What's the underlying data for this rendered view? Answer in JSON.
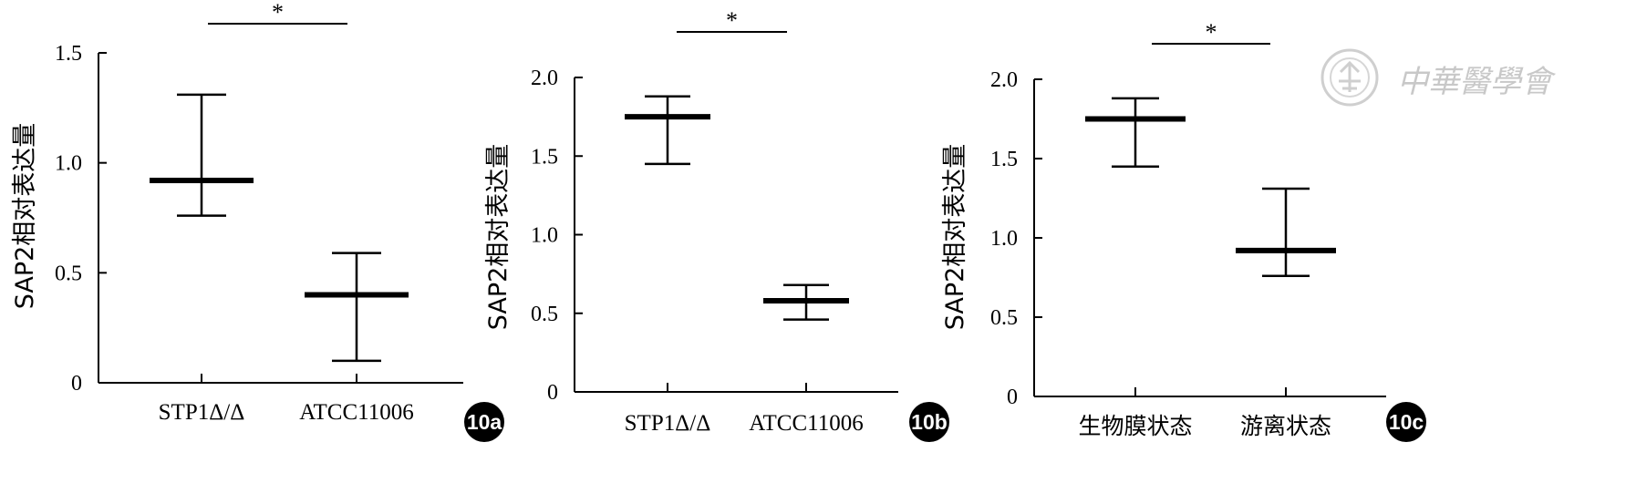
{
  "colors": {
    "ink": "#000000",
    "background": "#ffffff",
    "watermark": "#c8c8c8"
  },
  "watermark": {
    "text": "中華醫學會",
    "icon": "society-seal-icon"
  },
  "chart_data": [
    {
      "type": "box",
      "panel_label": "10a",
      "ylabel": "SAP2相对表达量",
      "ylim": [
        0,
        1.5
      ],
      "yticks": [
        0,
        0.5,
        1.0,
        1.5
      ],
      "ytick_labels": [
        "0",
        "0.5",
        "1.0",
        "1.5"
      ],
      "categories": [
        "STP1Δ/Δ",
        "ATCC11006"
      ],
      "series": [
        {
          "values": [
            {
              "mean": 0.92,
              "low": 0.76,
              "high": 1.31
            },
            {
              "mean": 0.4,
              "low": 0.1,
              "high": 0.59
            }
          ]
        }
      ],
      "significance": {
        "between": [
          0,
          1
        ],
        "label": "*"
      }
    },
    {
      "type": "box",
      "panel_label": "10b",
      "ylabel": "SAP2相对表达量",
      "ylim": [
        0,
        2.0
      ],
      "yticks": [
        0,
        0.5,
        1.0,
        1.5,
        2.0
      ],
      "ytick_labels": [
        "0",
        "0.5",
        "1.0",
        "1.5",
        "2.0"
      ],
      "categories": [
        "STP1Δ/Δ",
        "ATCC11006"
      ],
      "series": [
        {
          "values": [
            {
              "mean": 1.75,
              "low": 1.45,
              "high": 1.88
            },
            {
              "mean": 0.58,
              "low": 0.46,
              "high": 0.68
            }
          ]
        }
      ],
      "significance": {
        "between": [
          0,
          1
        ],
        "label": "*"
      }
    },
    {
      "type": "box",
      "panel_label": "10c",
      "ylabel": "SAP2相对表达量",
      "ylim": [
        0,
        2.0
      ],
      "yticks": [
        0,
        0.5,
        1.0,
        1.5,
        2.0
      ],
      "ytick_labels": [
        "0",
        "0.5",
        "1.0",
        "1.5",
        "2.0"
      ],
      "categories": [
        "生物膜状态",
        "游离状态"
      ],
      "series": [
        {
          "values": [
            {
              "mean": 1.75,
              "low": 1.45,
              "high": 1.88
            },
            {
              "mean": 0.92,
              "low": 0.76,
              "high": 1.31
            }
          ]
        }
      ],
      "significance": {
        "between": [
          0,
          1
        ],
        "label": "*"
      }
    }
  ]
}
